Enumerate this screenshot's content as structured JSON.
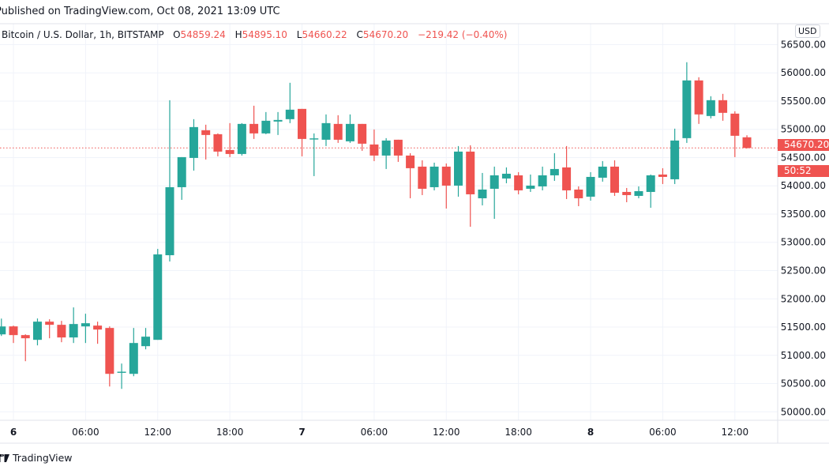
{
  "header": {
    "published": "Published on TradingView.com, Oct 08, 2021 13:09 UTC"
  },
  "legend": {
    "symbol": "Bitcoin / U.S. Dollar, 1h, BITSTAMP",
    "o_label": "O",
    "o": "54859.24",
    "h_label": "H",
    "h": "54895.10",
    "l_label": "L",
    "l": "54660.22",
    "c_label": "C",
    "c": "54670.20",
    "change": "−219.42 (−0.40%)"
  },
  "price_axis": {
    "currency": "USD",
    "last_price": "54670.20",
    "countdown": "50:52"
  },
  "footer": {
    "brand": "TradingView"
  },
  "colors": {
    "up": "#26a69a",
    "down": "#ef5350",
    "grid": "#f0f3fa",
    "text": "#131722"
  },
  "chart_data": {
    "type": "candlestick",
    "title": "Bitcoin / U.S. Dollar, 1h, BITSTAMP",
    "xlabel": "",
    "ylabel": "",
    "ylim": [
      49850,
      56870
    ],
    "grid": true,
    "yticks": [
      "50000.00",
      "50500.00",
      "51000.00",
      "51500.00",
      "52000.00",
      "52500.00",
      "53000.00",
      "53500.00",
      "54000.00",
      "54500.00",
      "55000.00",
      "55500.00",
      "56000.00",
      "56500.00"
    ],
    "xticks": [
      {
        "t": "2021-10-06 00:00",
        "label": "6"
      },
      {
        "t": "2021-10-06 06:00",
        "label": "06:00"
      },
      {
        "t": "2021-10-06 12:00",
        "label": "12:00"
      },
      {
        "t": "2021-10-06 18:00",
        "label": "18:00"
      },
      {
        "t": "2021-10-07 00:00",
        "label": "7"
      },
      {
        "t": "2021-10-07 06:00",
        "label": "06:00"
      },
      {
        "t": "2021-10-07 12:00",
        "label": "12:00"
      },
      {
        "t": "2021-10-07 18:00",
        "label": "18:00"
      },
      {
        "t": "2021-10-08 00:00",
        "label": "8"
      },
      {
        "t": "2021-10-08 06:00",
        "label": "06:00"
      },
      {
        "t": "2021-10-08 12:00",
        "label": "12:00"
      }
    ],
    "last_price": 54670.2,
    "columns": [
      "time",
      "open",
      "high",
      "low",
      "close"
    ],
    "candles": [
      [
        "2021-10-05 23:00",
        51371,
        51650,
        51343,
        51511
      ],
      [
        "2021-10-06 00:00",
        51512,
        51526,
        51218,
        51358
      ],
      [
        "2021-10-06 01:00",
        51358,
        51372,
        50896,
        51302
      ],
      [
        "2021-10-06 02:00",
        51274,
        51652,
        51176,
        51596
      ],
      [
        "2021-10-06 03:00",
        51596,
        51638,
        51302,
        51540
      ],
      [
        "2021-10-06 04:00",
        51540,
        51610,
        51232,
        51316
      ],
      [
        "2021-10-06 05:00",
        51316,
        51848,
        51218,
        51554
      ],
      [
        "2021-10-06 06:00",
        51512,
        51736,
        51218,
        51568
      ],
      [
        "2021-10-06 07:00",
        51526,
        51596,
        51204,
        51456
      ],
      [
        "2021-10-06 08:00",
        51484,
        51512,
        50448,
        50672
      ],
      [
        "2021-10-06 09:00",
        50690,
        50854,
        50406,
        50710
      ],
      [
        "2021-10-06 10:00",
        50672,
        51484,
        50630,
        51218
      ],
      [
        "2021-10-06 11:00",
        51162,
        51484,
        51106,
        51330
      ],
      [
        "2021-10-06 12:00",
        51274,
        52884,
        51274,
        52786
      ],
      [
        "2021-10-06 13:00",
        52772,
        55516,
        52660,
        53976
      ],
      [
        "2021-10-06 14:00",
        53976,
        54508,
        53752,
        54508
      ],
      [
        "2021-10-06 15:00",
        54494,
        55180,
        54270,
        55040
      ],
      [
        "2021-10-06 16:00",
        54984,
        55082,
        54466,
        54900
      ],
      [
        "2021-10-06 17:00",
        54914,
        54928,
        54522,
        54606
      ],
      [
        "2021-10-06 18:00",
        54634,
        55110,
        54508,
        54564
      ],
      [
        "2021-10-06 19:00",
        54564,
        55110,
        54536,
        55096
      ],
      [
        "2021-10-06 20:00",
        55096,
        55418,
        54830,
        54928
      ],
      [
        "2021-10-06 21:00",
        54928,
        55306,
        54914,
        55152
      ],
      [
        "2021-10-06 22:00",
        55138,
        55306,
        54900,
        55166
      ],
      [
        "2021-10-06 23:00",
        55180,
        55824,
        55110,
        55348
      ],
      [
        "2021-10-07 00:00",
        55362,
        55362,
        54522,
        54830
      ],
      [
        "2021-10-07 01:00",
        54820,
        54928,
        54172,
        54840
      ],
      [
        "2021-10-07 02:00",
        54816,
        55264,
        54704,
        55110
      ],
      [
        "2021-10-07 03:00",
        55096,
        55250,
        54760,
        54816
      ],
      [
        "2021-10-07 04:00",
        54788,
        55264,
        54760,
        55096
      ],
      [
        "2021-10-07 05:00",
        55096,
        55096,
        54620,
        54746
      ],
      [
        "2021-10-07 06:00",
        54732,
        54998,
        54438,
        54536
      ],
      [
        "2021-10-07 07:00",
        54536,
        54844,
        54298,
        54802
      ],
      [
        "2021-10-07 08:00",
        54816,
        54816,
        54424,
        54536
      ],
      [
        "2021-10-07 09:00",
        54536,
        54578,
        53780,
        54312
      ],
      [
        "2021-10-07 10:00",
        54340,
        54452,
        53836,
        53948
      ],
      [
        "2021-10-07 11:00",
        53976,
        54410,
        53920,
        54340
      ],
      [
        "2021-10-07 12:00",
        54340,
        54396,
        53598,
        54004
      ],
      [
        "2021-10-07 13:00",
        54004,
        54704,
        53808,
        54606
      ],
      [
        "2021-10-07 14:00",
        54606,
        54718,
        53276,
        53850
      ],
      [
        "2021-10-07 15:00",
        53780,
        54228,
        53654,
        53934
      ],
      [
        "2021-10-07 16:00",
        53948,
        54340,
        53416,
        54186
      ],
      [
        "2021-10-07 17:00",
        54130,
        54326,
        54046,
        54214
      ],
      [
        "2021-10-07 18:00",
        54186,
        54242,
        53850,
        53920
      ],
      [
        "2021-10-07 19:00",
        53948,
        54200,
        53892,
        54004
      ],
      [
        "2021-10-07 20:00",
        53990,
        54340,
        53920,
        54186
      ],
      [
        "2021-10-07 21:00",
        54186,
        54578,
        54088,
        54298
      ],
      [
        "2021-10-07 22:00",
        54326,
        54704,
        53766,
        53920
      ],
      [
        "2021-10-07 23:00",
        53934,
        53990,
        53640,
        53780
      ],
      [
        "2021-10-08 00:00",
        53808,
        54242,
        53738,
        54158
      ],
      [
        "2021-10-08 01:00",
        54144,
        54438,
        54074,
        54340
      ],
      [
        "2021-10-08 02:00",
        54340,
        54452,
        53822,
        53878
      ],
      [
        "2021-10-08 03:00",
        53892,
        53962,
        53710,
        53836
      ],
      [
        "2021-10-08 04:00",
        53822,
        53990,
        53780,
        53906
      ],
      [
        "2021-10-08 05:00",
        53892,
        54200,
        53612,
        54186
      ],
      [
        "2021-10-08 06:00",
        54200,
        54312,
        54032,
        54158
      ],
      [
        "2021-10-08 07:00",
        54116,
        55012,
        54032,
        54802
      ],
      [
        "2021-10-08 08:00",
        54844,
        56188,
        54760,
        55866
      ],
      [
        "2021-10-08 09:00",
        55866,
        55922,
        55096,
        55264
      ],
      [
        "2021-10-08 10:00",
        55236,
        55586,
        55194,
        55516
      ],
      [
        "2021-10-08 11:00",
        55516,
        55628,
        55152,
        55292
      ],
      [
        "2021-10-08 12:00",
        55278,
        55320,
        54508,
        54886
      ],
      [
        "2021-10-08 13:00",
        54859.24,
        54895.1,
        54660.22,
        54670.2
      ]
    ]
  }
}
